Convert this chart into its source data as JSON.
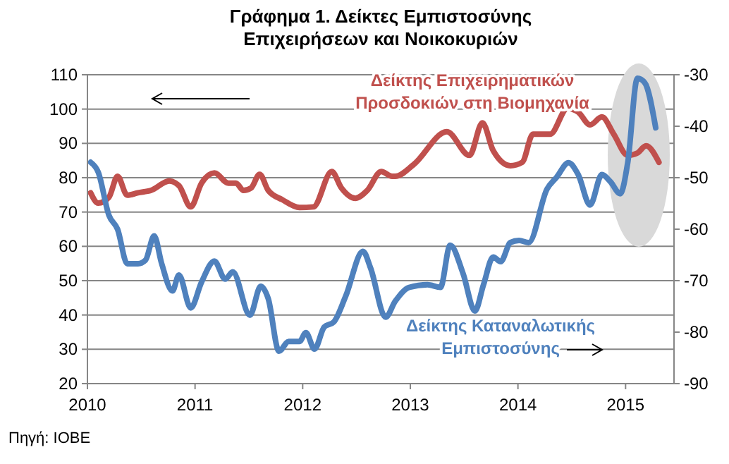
{
  "chart_data": {
    "type": "line",
    "title": "Γράφημα 1. Δείκτες Εμπιστοσύνης\nΕπιχειρήσεων και Νοικοκυριών",
    "annotations": [
      "Πηγή: ΙΟΒΕ"
    ],
    "xlim": [
      2010,
      2015.45
    ],
    "xticks": [
      2010,
      2011,
      2012,
      2013,
      2014,
      2015
    ],
    "ylim": [
      20,
      110
    ],
    "yticks": [
      20,
      30,
      40,
      50,
      60,
      70,
      80,
      90,
      100,
      110
    ],
    "y2lim": [
      -90,
      -30
    ],
    "y2ticks": [
      -90,
      -80,
      -70,
      -60,
      -50,
      -40,
      -30
    ],
    "grid": "y",
    "line_style": "solid",
    "marker": "none",
    "series": [
      {
        "name": "Δείκτης Επιχειρηματικών\nΠροσδοκιών στη Βιομηχανία",
        "color": "#c0504d",
        "x": [
          2010.03,
          2010.1,
          2010.2,
          2010.28,
          2010.37,
          2010.47,
          2010.59,
          2010.76,
          2010.85,
          2010.96,
          2011.06,
          2011.18,
          2011.31,
          2011.38,
          2011.45,
          2011.52,
          2011.6,
          2011.68,
          2011.81,
          2011.97,
          2012.1,
          2012.27,
          2012.36,
          2012.49,
          2012.6,
          2012.73,
          2012.83,
          2012.86,
          2013.03,
          2013.34,
          2013.55,
          2013.67,
          2013.77,
          2013.93,
          2014.04,
          2014.14,
          2014.3,
          2014.46,
          2014.56,
          2014.67,
          2014.78,
          2014.89,
          2015.02,
          2015.11,
          2015.19,
          2015.31
        ],
        "values": [
          75.6,
          72.6,
          74.3,
          80.4,
          74.9,
          75.6,
          76.3,
          79,
          77.7,
          71.5,
          78.4,
          81.4,
          78.4,
          78.4,
          76.3,
          77,
          81,
          76.3,
          73.6,
          71.3,
          71.5,
          81.8,
          77,
          74,
          76.3,
          81.8,
          80.4,
          80.4,
          83.8,
          93.4,
          86.5,
          96,
          87.9,
          83.5,
          84.5,
          92.7,
          92.7,
          100.2,
          99.1,
          95.4,
          97.7,
          92.7,
          86.5,
          87.2,
          89.3,
          84.5
        ]
      },
      {
        "name": "Δείκτης Καταναλωτικής\nΕμπιστοσύνης",
        "color": "#4f81bd",
        "axis": "y2",
        "x": [
          2010.03,
          2010.1,
          2010.2,
          2010.28,
          2010.37,
          2010.47,
          2010.54,
          2010.62,
          2010.69,
          2010.79,
          2010.85,
          2010.96,
          2011.06,
          2011.18,
          2011.28,
          2011.35,
          2011.51,
          2011.61,
          2011.68,
          2011.78,
          2011.87,
          2011.97,
          2012.03,
          2012.11,
          2012.2,
          2012.29,
          2012.4,
          2012.56,
          2012.63,
          2012.77,
          2012.86,
          2012.99,
          2013.16,
          2013.28,
          2013.37,
          2013.49,
          2013.6,
          2013.68,
          2013.77,
          2013.84,
          2013.93,
          2014.01,
          2014.1,
          2014.27,
          2014.36,
          2014.47,
          2014.56,
          2014.67,
          2014.78,
          2014.86,
          2014.95,
          2015.02,
          2015.11,
          2015.18,
          2015.28
        ],
        "values": [
          -47,
          -48.9,
          -57.3,
          -60,
          -66.7,
          -66.7,
          -66,
          -61.3,
          -66.7,
          -72,
          -68.9,
          -75.3,
          -70.3,
          -66.2,
          -69.7,
          -68.3,
          -76.7,
          -71.1,
          -73.5,
          -83.7,
          -81.8,
          -81.8,
          -80.1,
          -83.3,
          -79,
          -78,
          -73,
          -64.3,
          -67.5,
          -77.1,
          -74,
          -71.3,
          -70.8,
          -71.3,
          -63.1,
          -68.6,
          -75.9,
          -70.8,
          -65.4,
          -66.3,
          -62.6,
          -62.2,
          -62.6,
          -52.2,
          -49.9,
          -47.1,
          -49.4,
          -55.3,
          -49.4,
          -50.8,
          -53.1,
          -47.1,
          -30.7,
          -31.6,
          -40.3
        ]
      }
    ]
  }
}
